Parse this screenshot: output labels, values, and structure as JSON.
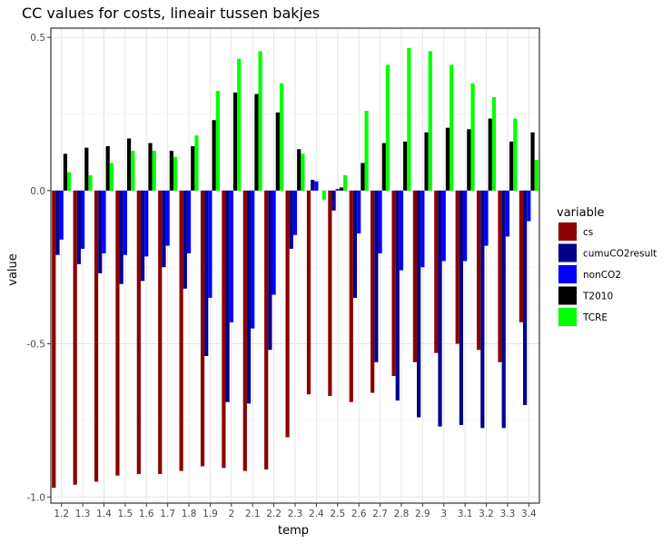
{
  "chart_data": {
    "type": "bar",
    "title": "CC values for costs, lineair tussen bakjes",
    "xlabel": "temp",
    "ylabel": "value",
    "ylim": [
      -1.02,
      0.53
    ],
    "yticks": [
      -1.0,
      -0.5,
      0.0,
      0.5
    ],
    "ytick_labels": [
      "-1.0",
      "-0.5",
      "0.0",
      "0.5"
    ],
    "grid": true,
    "legend_position": "right",
    "legend_title": "variable",
    "categories": [
      "1.2",
      "1.3",
      "1.4",
      "1.5",
      "1.6",
      "1.7",
      "1.8",
      "1.9",
      "2",
      "2.1",
      "2.2",
      "2.3",
      "2.4",
      "2.5",
      "2.6",
      "2.7",
      "2.8",
      "2.9",
      "3",
      "3.1",
      "3.2",
      "3.3",
      "3.4"
    ],
    "series": [
      {
        "name": "cs",
        "color": "#8b0000",
        "values": [
          -0.97,
          -0.96,
          -0.95,
          -0.93,
          -0.925,
          -0.925,
          -0.915,
          -0.9,
          -0.905,
          -0.915,
          -0.91,
          -0.805,
          -0.665,
          -0.67,
          -0.69,
          -0.66,
          -0.605,
          -0.56,
          -0.53,
          -0.5,
          -0.52,
          -0.56,
          -0.43
        ]
      },
      {
        "name": "cumuCO2result",
        "color": "#00008b",
        "values": [
          -0.21,
          -0.24,
          -0.27,
          -0.305,
          -0.295,
          -0.25,
          -0.32,
          -0.54,
          -0.69,
          -0.695,
          -0.52,
          -0.19,
          0.035,
          -0.065,
          -0.35,
          -0.56,
          -0.685,
          -0.74,
          -0.77,
          -0.765,
          -0.775,
          -0.775,
          -0.7
        ]
      },
      {
        "name": "nonCO2",
        "color": "#0000ff",
        "values": [
          -0.16,
          -0.19,
          -0.205,
          -0.21,
          -0.215,
          -0.18,
          -0.205,
          -0.35,
          -0.43,
          -0.45,
          -0.34,
          -0.145,
          0.03,
          0.005,
          -0.14,
          -0.205,
          -0.26,
          -0.25,
          -0.23,
          -0.23,
          -0.18,
          -0.15,
          -0.1
        ]
      },
      {
        "name": "T2010",
        "color": "#000000",
        "values": [
          0.12,
          0.14,
          0.145,
          0.17,
          0.155,
          0.13,
          0.145,
          0.23,
          0.32,
          0.315,
          0.255,
          0.135,
          0.0,
          0.01,
          0.09,
          0.155,
          0.16,
          0.19,
          0.205,
          0.2,
          0.235,
          0.16,
          0.19
        ]
      },
      {
        "name": "TCRE",
        "color": "#00ff00",
        "values": [
          0.06,
          0.05,
          0.09,
          0.13,
          0.13,
          0.11,
          0.18,
          0.325,
          0.43,
          0.455,
          0.35,
          0.12,
          -0.03,
          0.05,
          0.26,
          0.41,
          0.465,
          0.455,
          0.41,
          0.35,
          0.305,
          0.235,
          0.1
        ]
      }
    ]
  }
}
